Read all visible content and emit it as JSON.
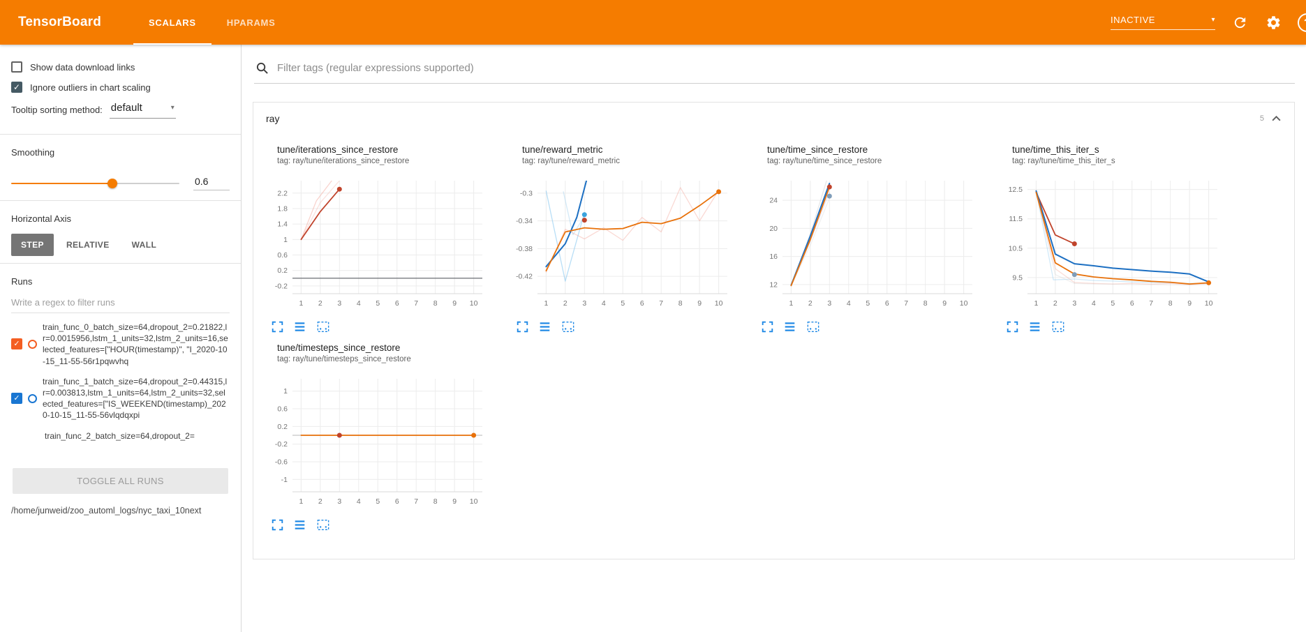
{
  "header": {
    "title": "TensorBoard",
    "tabs": [
      {
        "label": "SCALARS",
        "active": true
      },
      {
        "label": "HPARAMS",
        "active": false
      }
    ],
    "status_dropdown": {
      "value": "INACTIVE"
    },
    "help_glyph": "?",
    "icon_names": [
      "refresh-icon",
      "settings-icon",
      "help-icon"
    ]
  },
  "icons": {
    "caret": "▾",
    "check": "✓"
  },
  "colors": {
    "accent": "#f57c00",
    "icon_blue": "#1e88e5",
    "checked_gray": "#455a64"
  },
  "sidebar": {
    "checkboxes": [
      {
        "label": "Show data download links",
        "checked": false
      },
      {
        "label": "Ignore outliers in chart scaling",
        "checked": true
      }
    ],
    "tooltip_sorting": {
      "label": "Tooltip sorting method:",
      "value": "default"
    },
    "smoothing": {
      "label": "Smoothing",
      "value": "0.6",
      "percent": 60
    },
    "horizontal_axis": {
      "label": "Horizontal Axis",
      "options": [
        "STEP",
        "RELATIVE",
        "WALL"
      ],
      "selected": "STEP"
    },
    "runs": {
      "label": "Runs",
      "filter_placeholder": "Write a regex to filter runs",
      "items": [
        {
          "color": "#f45e22",
          "checked": true,
          "label": "train_func_0_batch_size=64,dropout_2=0.21822,lr=0.0015956,lstm_1_units=32,lstm_2_units=16,selected_features=[\"HOUR(timestamp)\", \"I_2020-10-15_11-55-56r1pqwvhq"
        },
        {
          "color": "#1976d2",
          "checked": true,
          "label": "train_func_1_batch_size=64,dropout_2=0.44315,lr=0.003813,lstm_1_units=64,lstm_2_units=32,selected_features=[\"IS_WEEKEND(timestamp)_2020-10-15_11-55-56vlqdqxpi"
        },
        {
          "color": "#d32f2f",
          "checked": false,
          "partial": true,
          "label": "train_func_2_batch_size=64,dropout_2="
        }
      ],
      "toggle_all_label": "TOGGLE ALL RUNS",
      "footer_path": "/home/junweid/zoo_automl_logs/nyc_taxi_10next"
    }
  },
  "main": {
    "filter_placeholder": "Filter tags (regular expressions supported)",
    "group": {
      "title": "ray",
      "count": "5"
    },
    "chart_footer_icons": [
      "expand-icon",
      "runs-selector-icon",
      "pin-icon"
    ]
  },
  "chart_data": [
    {
      "type": "line",
      "title": "tune/iterations_since_restore",
      "tag": "tag: ray/tune/iterations_since_restore",
      "xlim": [
        0.55,
        10.45
      ],
      "ylim": [
        -0.4,
        2.52
      ],
      "xticks": [
        1,
        2,
        3,
        4,
        5,
        6,
        7,
        8,
        9,
        10
      ],
      "yticks": [
        -0.2,
        0.2,
        0.6,
        1,
        1.4,
        1.8,
        2.2
      ],
      "series": [
        {
          "name": "raw-a",
          "color": "#f2a093",
          "opacity": 0.45,
          "width": 1.3,
          "points": [
            [
              1,
              1
            ],
            [
              1.8,
              2.0
            ],
            [
              2.6,
              2.52
            ]
          ]
        },
        {
          "name": "raw-b",
          "color": "#f2a093",
          "opacity": 0.3,
          "width": 1.3,
          "points": [
            [
              1,
              1
            ],
            [
              2,
              1.95
            ],
            [
              3,
              2.52
            ]
          ]
        },
        {
          "name": "baseline-zero",
          "color": "#5f6368",
          "opacity": 0.85,
          "width": 1.4,
          "points": [
            [
              0.55,
              0
            ],
            [
              10.45,
              0
            ]
          ]
        },
        {
          "name": "smoothed",
          "color": "#c0432b",
          "opacity": 1,
          "width": 1.8,
          "points": [
            [
              1,
              1
            ],
            [
              2,
              1.72
            ],
            [
              3,
              2.3
            ]
          ],
          "end_dot": true
        }
      ],
      "dots": []
    },
    {
      "type": "line",
      "title": "tune/reward_metric",
      "tag": "tag: ray/tune/reward_metric",
      "xlim": [
        0.55,
        10.45
      ],
      "ylim": [
        -0.445,
        -0.282
      ],
      "xticks": [
        1,
        2,
        3,
        4,
        5,
        6,
        7,
        8,
        9,
        10
      ],
      "yticks": [
        -0.42,
        -0.38,
        -0.34,
        -0.3
      ],
      "series": [
        {
          "name": "raw-lightblue-1",
          "color": "#7ec3ee",
          "opacity": 0.55,
          "width": 1.3,
          "points": [
            [
              1,
              -0.297
            ],
            [
              2,
              -0.427
            ],
            [
              3,
              -0.328
            ]
          ]
        },
        {
          "name": "raw-lightblue-2",
          "color": "#a8d4f0",
          "opacity": 0.5,
          "width": 1.3,
          "points": [
            [
              1.9,
              -0.298
            ],
            [
              2.4,
              -0.36
            ],
            [
              3,
              -0.333
            ]
          ]
        },
        {
          "name": "raw-orange",
          "color": "#f2a093",
          "opacity": 0.4,
          "width": 1.3,
          "points": [
            [
              1,
              -0.414
            ],
            [
              2,
              -0.352
            ],
            [
              3,
              -0.366
            ],
            [
              4,
              -0.35
            ],
            [
              5,
              -0.368
            ],
            [
              6,
              -0.335
            ],
            [
              7,
              -0.356
            ],
            [
              8,
              -0.292
            ],
            [
              9,
              -0.34
            ],
            [
              10,
              -0.296
            ]
          ]
        },
        {
          "name": "smoothed-blue",
          "color": "#1c6fc2",
          "opacity": 1,
          "width": 2,
          "points": [
            [
              1,
              -0.406
            ],
            [
              2,
              -0.373
            ],
            [
              2.6,
              -0.335
            ],
            [
              3.1,
              -0.282
            ]
          ]
        },
        {
          "name": "smoothed-orange",
          "color": "#e8710a",
          "opacity": 1,
          "width": 1.8,
          "points": [
            [
              1,
              -0.412
            ],
            [
              2,
              -0.356
            ],
            [
              3,
              -0.35
            ],
            [
              4,
              -0.352
            ],
            [
              5,
              -0.351
            ],
            [
              6,
              -0.342
            ],
            [
              7,
              -0.344
            ],
            [
              8,
              -0.336
            ],
            [
              9,
              -0.318
            ],
            [
              10,
              -0.298
            ]
          ],
          "end_dot": true
        }
      ],
      "dots": [
        {
          "x": 3,
          "y": -0.339,
          "color": "#c0432b"
        },
        {
          "x": 3,
          "y": -0.331,
          "color": "#3ba3dc"
        }
      ]
    },
    {
      "type": "line",
      "title": "tune/time_since_restore",
      "tag": "tag: ray/tune/time_since_restore",
      "xlim": [
        0.55,
        10.45
      ],
      "ylim": [
        10.7,
        26.8
      ],
      "xticks": [
        1,
        2,
        3,
        4,
        5,
        6,
        7,
        8,
        9,
        10
      ],
      "yticks": [
        12,
        16,
        20,
        24
      ],
      "series": [
        {
          "name": "raw-gray-1",
          "color": "#bdbdbd",
          "opacity": 0.35,
          "width": 1.3,
          "points": [
            [
              1,
              11.9
            ],
            [
              2,
              19.2
            ],
            [
              2.85,
              26.8
            ]
          ]
        },
        {
          "name": "raw-lavender",
          "color": "#b9b0d6",
          "opacity": 0.35,
          "width": 1.3,
          "points": [
            [
              1,
              11.85
            ],
            [
              2,
              18.2
            ],
            [
              3,
              25.2
            ]
          ]
        },
        {
          "name": "raw-pink",
          "color": "#f2a093",
          "opacity": 0.4,
          "width": 1.3,
          "points": [
            [
              1,
              11.9
            ],
            [
              2,
              18.7
            ],
            [
              3,
              26.2
            ]
          ]
        },
        {
          "name": "raw-gray-2",
          "color": "#cccccc",
          "opacity": 0.3,
          "width": 1.3,
          "points": [
            [
              1,
              11.8
            ],
            [
              2,
              17.6
            ],
            [
              3,
              24.3
            ]
          ]
        },
        {
          "name": "smoothed-blue",
          "color": "#1c6fc2",
          "opacity": 1,
          "width": 2,
          "points": [
            [
              1,
              11.9
            ],
            [
              2,
              18.9
            ],
            [
              3,
              26.4
            ]
          ]
        },
        {
          "name": "smoothed-orange",
          "color": "#e8710a",
          "opacity": 1,
          "width": 1.8,
          "points": [
            [
              1,
              11.85
            ],
            [
              2,
              18.4
            ],
            [
              3,
              25.9
            ]
          ]
        }
      ],
      "dots": [
        {
          "x": 3,
          "y": 25.9,
          "color": "#c0432b"
        },
        {
          "x": 3,
          "y": 24.6,
          "color": "#7f9db9"
        }
      ]
    },
    {
      "type": "line",
      "title": "tune/time_this_iter_s",
      "tag": "tag: ray/tune/time_this_iter_s",
      "xlim": [
        0.55,
        10.45
      ],
      "ylim": [
        8.95,
        12.8
      ],
      "xticks": [
        1,
        2,
        3,
        4,
        5,
        6,
        7,
        8,
        9,
        10
      ],
      "yticks": [
        9.5,
        10.5,
        11.5,
        12.5
      ],
      "series": [
        {
          "name": "raw-lightblue",
          "color": "#7ec3ee",
          "opacity": 0.35,
          "width": 1.3,
          "points": [
            [
              1,
              12.45
            ],
            [
              1.9,
              9.42
            ],
            [
              3,
              9.45
            ],
            [
              4,
              9.4
            ],
            [
              5,
              9.38
            ],
            [
              6,
              9.35
            ],
            [
              7,
              9.33
            ],
            [
              8,
              9.32
            ],
            [
              9,
              9.3
            ],
            [
              10,
              9.3
            ]
          ]
        },
        {
          "name": "raw-pink",
          "color": "#f2a093",
          "opacity": 0.35,
          "width": 1.3,
          "points": [
            [
              1,
              12.4
            ],
            [
              2,
              9.8
            ],
            [
              3,
              9.33
            ],
            [
              4,
              9.3
            ],
            [
              5,
              9.28
            ],
            [
              6,
              9.3
            ],
            [
              7,
              9.27
            ],
            [
              8,
              9.3
            ],
            [
              9,
              9.25
            ],
            [
              10,
              9.3
            ]
          ]
        },
        {
          "name": "raw-gray",
          "color": "#c9c9c9",
          "opacity": 0.3,
          "width": 1.3,
          "points": [
            [
              1,
              12.4
            ],
            [
              2,
              9.6
            ],
            [
              3,
              9.3
            ],
            [
              4,
              9.28
            ],
            [
              5,
              9.27
            ],
            [
              6,
              9.26
            ],
            [
              7,
              9.26
            ],
            [
              8,
              9.25
            ],
            [
              9,
              9.25
            ],
            [
              10,
              9.26
            ]
          ]
        },
        {
          "name": "smoothed-darkred",
          "color": "#c0432b",
          "opacity": 1,
          "width": 1.8,
          "points": [
            [
              1,
              12.4
            ],
            [
              2,
              10.95
            ],
            [
              3,
              10.65
            ]
          ],
          "end_dot": true
        },
        {
          "name": "smoothed-blue",
          "color": "#1c6fc2",
          "opacity": 1,
          "width": 2,
          "points": [
            [
              1,
              12.45
            ],
            [
              2,
              10.3
            ],
            [
              3,
              9.97
            ],
            [
              4,
              9.9
            ],
            [
              5,
              9.82
            ],
            [
              6,
              9.77
            ],
            [
              7,
              9.72
            ],
            [
              8,
              9.68
            ],
            [
              9,
              9.62
            ],
            [
              10,
              9.35
            ]
          ]
        },
        {
          "name": "smoothed-orange",
          "color": "#e8710a",
          "opacity": 1,
          "width": 1.8,
          "points": [
            [
              1,
              12.4
            ],
            [
              2,
              10.0
            ],
            [
              3,
              9.62
            ],
            [
              4,
              9.52
            ],
            [
              5,
              9.46
            ],
            [
              6,
              9.42
            ],
            [
              7,
              9.37
            ],
            [
              8,
              9.34
            ],
            [
              9,
              9.28
            ],
            [
              10,
              9.32
            ]
          ],
          "end_dot": true
        }
      ],
      "dots": [
        {
          "x": 3,
          "y": 9.6,
          "color": "#7f9db9"
        }
      ]
    },
    {
      "type": "line",
      "title": "tune/timesteps_since_restore",
      "tag": "tag: ray/tune/timesteps_since_restore",
      "xlim": [
        0.55,
        10.45
      ],
      "ylim": [
        -1.28,
        1.28
      ],
      "xticks": [
        1,
        2,
        3,
        4,
        5,
        6,
        7,
        8,
        9,
        10
      ],
      "yticks": [
        -1,
        -0.6,
        -0.2,
        0.2,
        0.6,
        1
      ],
      "series": [
        {
          "name": "flat-gray",
          "color": "#9e9e9e",
          "opacity": 0.6,
          "width": 1.3,
          "points": [
            [
              0.55,
              0
            ],
            [
              10.45,
              0
            ]
          ]
        },
        {
          "name": "flat-orange",
          "color": "#e8710a",
          "opacity": 1,
          "width": 1.8,
          "points": [
            [
              1,
              0
            ],
            [
              10,
              0
            ]
          ],
          "end_dot": true
        }
      ],
      "dots": [
        {
          "x": 3,
          "y": 0,
          "color": "#c0432b"
        }
      ]
    }
  ]
}
